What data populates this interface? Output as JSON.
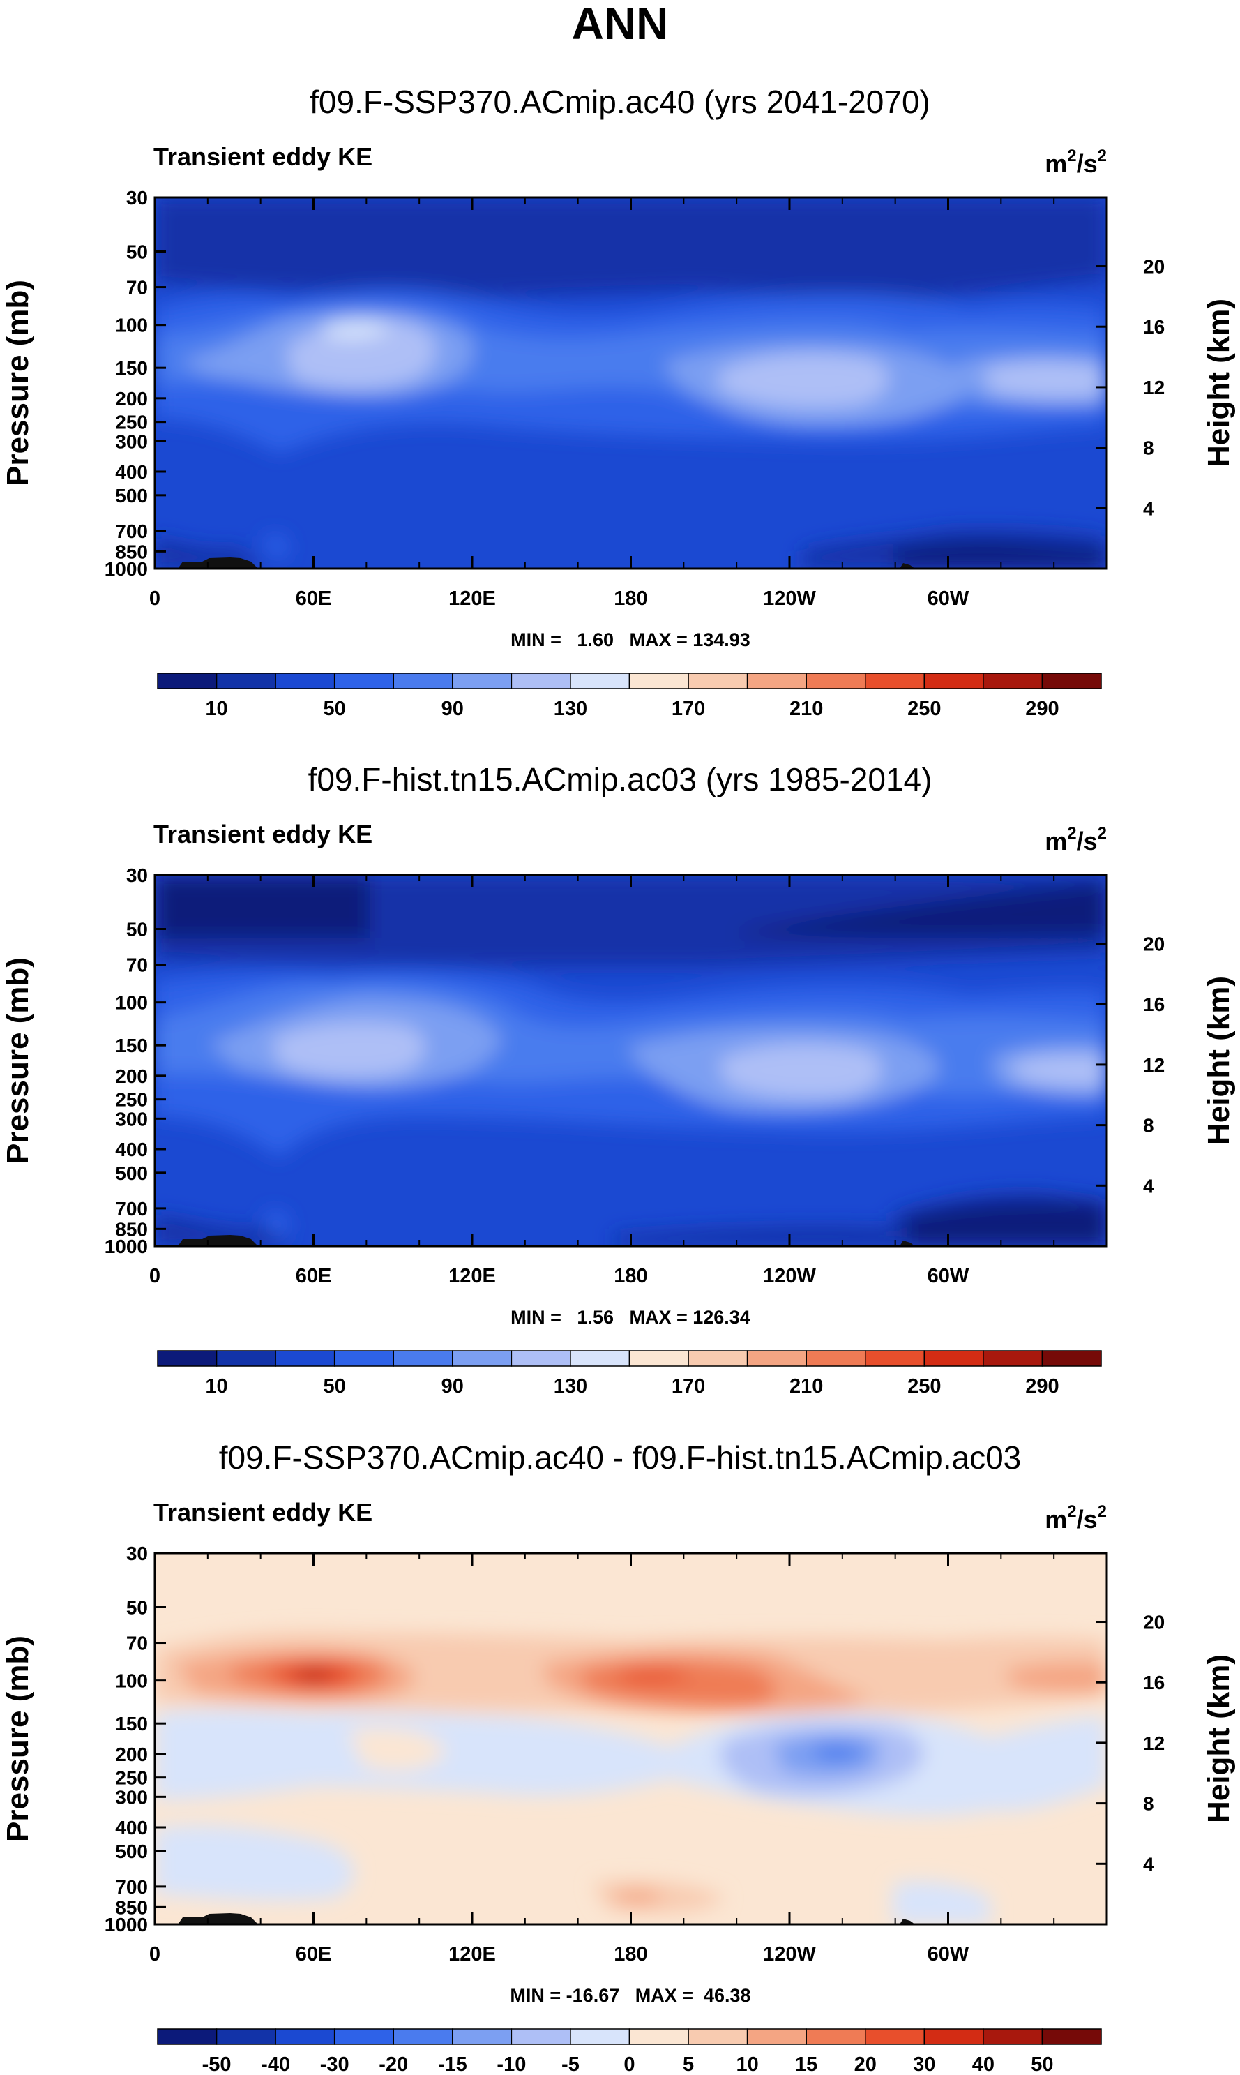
{
  "figure": {
    "title": "ANN"
  },
  "colors": {
    "kePalette": [
      "#0c1a7a",
      "#1233a8",
      "#1b49d2",
      "#2e62e8",
      "#4a7bee",
      "#7c9ff2",
      "#aebff6",
      "#d8e4fb",
      "#fbe6d3",
      "#f8cbb0",
      "#f4a583",
      "#ef7b55",
      "#e84f2c",
      "#d32c14",
      "#a8180d",
      "#760a08"
    ],
    "diffPalette": [
      "#0c1a7a",
      "#1233a8",
      "#1b49d2",
      "#2e62e8",
      "#4a7bee",
      "#7c9ff2",
      "#aebff6",
      "#d8e4fb",
      "#fbe6d3",
      "#f8cbb0",
      "#f4a583",
      "#ef7b55",
      "#e84f2c",
      "#d32c14",
      "#a8180d",
      "#760a08"
    ],
    "topography": "#111111"
  },
  "chart_data": [
    {
      "type": "heatmap",
      "title": "f09.F-SSP370.ACmip.ac40 (yrs 2041-2070)",
      "left_label": "Transient eddy KE",
      "units_base": "m",
      "units_sup1": "2",
      "units_mid": "/s",
      "units_sup2": "2",
      "ylabel": "Pressure (mb)",
      "ylabel_right": "Height (km)",
      "pressure_ticks": [
        "30",
        "50",
        "70",
        "100",
        "150",
        "200",
        "250",
        "300",
        "400",
        "500",
        "700",
        "850",
        "1000"
      ],
      "height_ticks": [
        "20",
        "16",
        "12",
        "8",
        "4"
      ],
      "lon_ticks": [
        "0",
        "60E",
        "120E",
        "180",
        "120W",
        "60W"
      ],
      "stats": "MIN =   1.60   MAX = 134.93",
      "colorbar_labels": [
        "10",
        "50",
        "90",
        "130",
        "170",
        "210",
        "250",
        "290"
      ],
      "levels": [
        10,
        30,
        50,
        70,
        90,
        110,
        130,
        150,
        170,
        190,
        210,
        230,
        250,
        270,
        290
      ],
      "min": 1.6,
      "max": 134.93
    },
    {
      "type": "heatmap",
      "title": "f09.F-hist.tn15.ACmip.ac03 (yrs 1985-2014)",
      "left_label": "Transient eddy KE",
      "units_base": "m",
      "units_sup1": "2",
      "units_mid": "/s",
      "units_sup2": "2",
      "ylabel": "Pressure (mb)",
      "ylabel_right": "Height (km)",
      "pressure_ticks": [
        "30",
        "50",
        "70",
        "100",
        "150",
        "200",
        "250",
        "300",
        "400",
        "500",
        "700",
        "850",
        "1000"
      ],
      "height_ticks": [
        "20",
        "16",
        "12",
        "8",
        "4"
      ],
      "lon_ticks": [
        "0",
        "60E",
        "120E",
        "180",
        "120W",
        "60W"
      ],
      "stats": "MIN =   1.56   MAX = 126.34",
      "colorbar_labels": [
        "10",
        "50",
        "90",
        "130",
        "170",
        "210",
        "250",
        "290"
      ],
      "levels": [
        10,
        30,
        50,
        70,
        90,
        110,
        130,
        150,
        170,
        190,
        210,
        230,
        250,
        270,
        290
      ],
      "min": 1.56,
      "max": 126.34
    },
    {
      "type": "heatmap",
      "title": "f09.F-SSP370.ACmip.ac40 - f09.F-hist.tn15.ACmip.ac03",
      "left_label": "Transient eddy KE",
      "units_base": "m",
      "units_sup1": "2",
      "units_mid": "/s",
      "units_sup2": "2",
      "ylabel": "Pressure (mb)",
      "ylabel_right": "Height (km)",
      "pressure_ticks": [
        "30",
        "50",
        "70",
        "100",
        "150",
        "200",
        "250",
        "300",
        "400",
        "500",
        "700",
        "850",
        "1000"
      ],
      "height_ticks": [
        "20",
        "16",
        "12",
        "8",
        "4"
      ],
      "lon_ticks": [
        "0",
        "60E",
        "120E",
        "180",
        "120W",
        "60W"
      ],
      "stats": "MIN = -16.67   MAX =  46.38",
      "colorbar_labels": [
        "-50",
        "-40",
        "-30",
        "-20",
        "-15",
        "-10",
        "-5",
        "0",
        "5",
        "10",
        "15",
        "20",
        "30",
        "40",
        "50"
      ],
      "levels": [
        -50,
        -40,
        -30,
        -20,
        -15,
        -10,
        -5,
        0,
        5,
        10,
        15,
        20,
        30,
        40,
        50
      ],
      "min": -16.67,
      "max": 46.38
    }
  ]
}
